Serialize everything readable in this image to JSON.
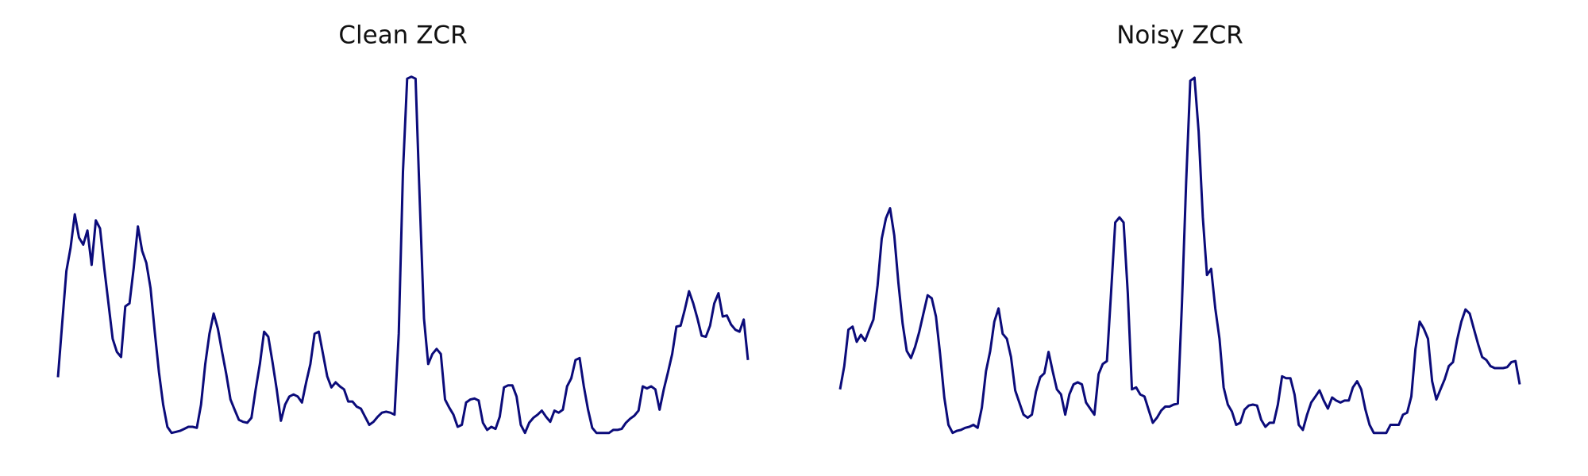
{
  "chart_data": [
    {
      "type": "line",
      "title": "Clean ZCR",
      "color": "#0b0b7a",
      "ylim": [
        0,
        370
      ],
      "values": [
        67,
        120,
        172,
        195,
        228,
        205,
        198,
        212,
        178,
        222,
        214,
        175,
        140,
        105,
        92,
        87,
        137,
        140,
        175,
        216,
        192,
        180,
        155,
        112,
        72,
        40,
        18,
        12,
        13,
        14,
        16,
        18,
        18,
        17,
        40,
        80,
        110,
        130,
        115,
        92,
        70,
        45,
        35,
        25,
        23,
        22,
        27,
        55,
        80,
        112,
        107,
        82,
        55,
        24,
        40,
        48,
        50,
        48,
        42,
        62,
        80,
        110,
        112,
        90,
        68,
        57,
        62,
        58,
        55,
        43,
        43,
        38,
        36,
        28,
        20,
        23,
        28,
        32,
        33,
        32,
        30,
        110,
        270,
        362,
        364,
        362,
        240,
        125,
        80,
        90,
        95,
        90,
        45,
        37,
        30,
        18,
        20,
        42,
        45,
        46,
        44,
        22,
        15,
        18,
        16,
        28,
        57,
        59,
        59,
        48,
        20,
        12,
        22,
        27,
        30,
        34,
        28,
        23,
        34,
        32,
        35,
        58,
        66,
        84,
        86,
        58,
        35,
        17,
        12,
        12,
        12,
        12,
        15,
        15,
        16,
        22,
        26,
        29,
        34,
        58,
        56,
        58,
        55,
        35,
        55,
        72,
        90,
        117,
        118,
        134,
        152,
        140,
        125,
        108,
        107,
        118,
        140,
        150,
        127,
        128,
        119,
        114,
        112,
        124,
        84
      ]
    },
    {
      "type": "line",
      "title": "Noisy ZCR",
      "color": "#0b0b7a",
      "ylim": [
        0,
        370
      ],
      "values": [
        55,
        78,
        114,
        117,
        102,
        109,
        103,
        114,
        124,
        158,
        204,
        224,
        234,
        207,
        160,
        120,
        93,
        86,
        97,
        112,
        130,
        148,
        145,
        127,
        90,
        47,
        20,
        12,
        14,
        15,
        17,
        18,
        20,
        17,
        37,
        73,
        93,
        122,
        135,
        110,
        105,
        87,
        54,
        42,
        30,
        27,
        30,
        53,
        67,
        71,
        92,
        73,
        55,
        50,
        30,
        50,
        60,
        62,
        60,
        42,
        36,
        30,
        70,
        80,
        83,
        150,
        220,
        225,
        220,
        150,
        55,
        57,
        50,
        48,
        35,
        22,
        27,
        34,
        38,
        38,
        40,
        41,
        140,
        260,
        360,
        363,
        310,
        225,
        168,
        174,
        135,
        105,
        57,
        40,
        33,
        20,
        22,
        35,
        39,
        40,
        39,
        25,
        18,
        22,
        22,
        40,
        68,
        66,
        66,
        50,
        20,
        15,
        30,
        42,
        48,
        54,
        44,
        36,
        47,
        44,
        42,
        44,
        44,
        57,
        63,
        55,
        35,
        20,
        12,
        12,
        12,
        12,
        20,
        20,
        20,
        30,
        32,
        48,
        95,
        122,
        115,
        105,
        63,
        45,
        55,
        65,
        78,
        82,
        104,
        122,
        134,
        130,
        115,
        100,
        87,
        84,
        78,
        76,
        76,
        76,
        77,
        82,
        83,
        60
      ]
    }
  ]
}
